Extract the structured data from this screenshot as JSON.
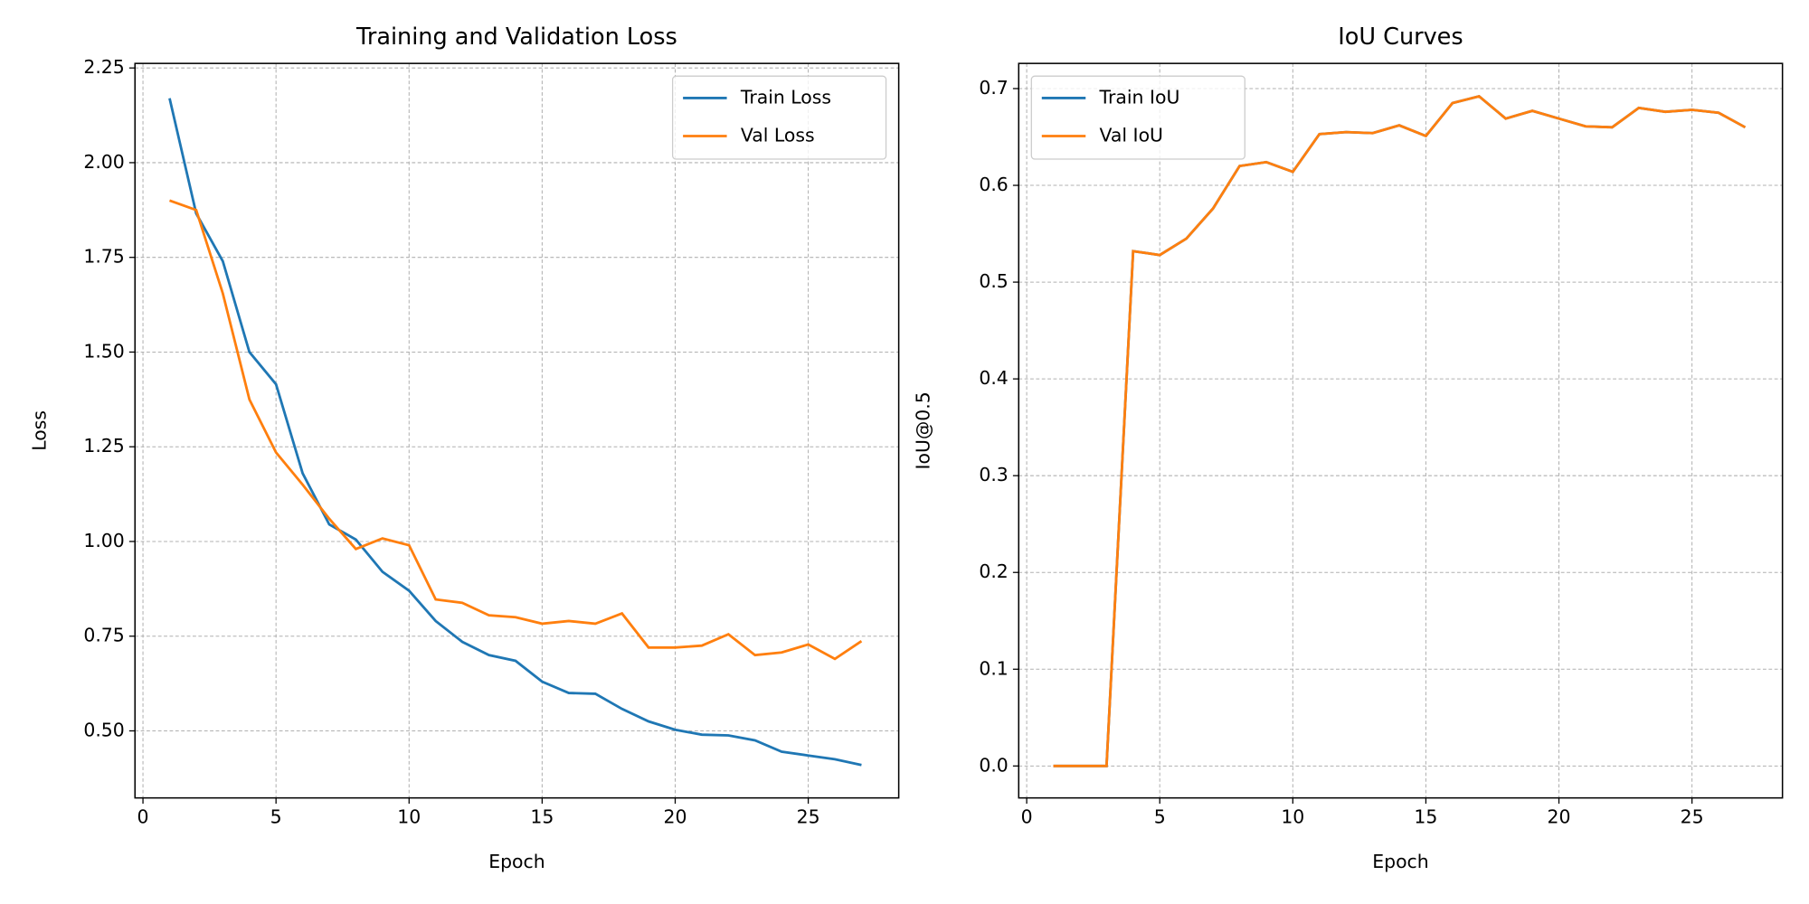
{
  "chart_data": [
    {
      "type": "line",
      "title": "Training and Validation Loss",
      "xlabel": "Epoch",
      "ylabel": "Loss",
      "x": [
        1,
        2,
        3,
        4,
        5,
        6,
        7,
        8,
        9,
        10,
        11,
        12,
        13,
        14,
        15,
        16,
        17,
        18,
        19,
        20,
        21,
        22,
        23,
        24,
        25,
        26,
        27
      ],
      "series": [
        {
          "name": "Train Loss",
          "color": "#1f77b4",
          "values": [
            2.17,
            1.866,
            1.74,
            1.5,
            1.415,
            1.18,
            1.045,
            1.005,
            0.92,
            0.87,
            0.79,
            0.735,
            0.7,
            0.685,
            0.63,
            0.6,
            0.598,
            0.558,
            0.525,
            0.503,
            0.49,
            0.488,
            0.475,
            0.445,
            0.435,
            0.425,
            0.41
          ]
        },
        {
          "name": "Val Loss",
          "color": "#ff7f0e",
          "values": [
            1.9,
            1.875,
            1.655,
            1.375,
            1.235,
            1.15,
            1.06,
            0.98,
            1.008,
            0.99,
            0.847,
            0.838,
            0.805,
            0.8,
            0.783,
            0.79,
            0.783,
            0.81,
            0.72,
            0.72,
            0.725,
            0.755,
            0.7,
            0.707,
            0.728,
            0.69,
            0.737
          ]
        }
      ],
      "xlim": [
        -0.3,
        28.4
      ],
      "xticks": [
        0,
        5,
        10,
        15,
        20,
        25
      ],
      "ylim": [
        0.323,
        2.262
      ],
      "yticks": [
        {
          "value": 0.5,
          "label": "0.50"
        },
        0.75,
        {
          "value": 1,
          "label": "1.00"
        },
        1.25,
        {
          "value": 1.5,
          "label": "1.50"
        },
        1.75,
        {
          "value": 2,
          "label": "2.00"
        },
        2.25
      ],
      "grid": true,
      "legend": "upper right"
    },
    {
      "type": "line",
      "title": "IoU Curves",
      "xlabel": "Epoch",
      "ylabel": "IoU@0.5",
      "x": [
        1,
        2,
        3,
        4,
        5,
        6,
        7,
        8,
        9,
        10,
        11,
        12,
        13,
        14,
        15,
        16,
        17,
        18,
        19,
        20,
        21,
        22,
        23,
        24,
        25,
        26,
        27
      ],
      "series": [
        {
          "name": "Train IoU",
          "color": "#1f77b4",
          "values": [
            0,
            0,
            0,
            0.532,
            0.528,
            0.545,
            0.576,
            0.62,
            0.624,
            0.614,
            0.653,
            0.655,
            0.654,
            0.662,
            0.651,
            0.685,
            0.692,
            0.669,
            0.677,
            0.669,
            0.661,
            0.66,
            0.68,
            0.676,
            0.678,
            0.675,
            0.66
          ]
        },
        {
          "name": "Val IoU",
          "color": "#ff7f0e",
          "values": [
            0,
            0,
            0,
            0.532,
            0.528,
            0.545,
            0.576,
            0.62,
            0.624,
            0.614,
            0.653,
            0.655,
            0.654,
            0.662,
            0.651,
            0.685,
            0.692,
            0.669,
            0.677,
            0.669,
            0.661,
            0.66,
            0.68,
            0.676,
            0.678,
            0.675,
            0.66
          ]
        }
      ],
      "xlim": [
        -0.3,
        28.4
      ],
      "xticks": [
        0,
        5,
        10,
        15,
        20,
        25
      ],
      "ylim": [
        -0.033,
        0.726
      ],
      "yticks": [
        {
          "value": 0,
          "label": "0.0"
        },
        0.1,
        0.2,
        0.3,
        0.4,
        0.5,
        0.6,
        0.7
      ],
      "grid": true,
      "legend": "upper left"
    }
  ]
}
